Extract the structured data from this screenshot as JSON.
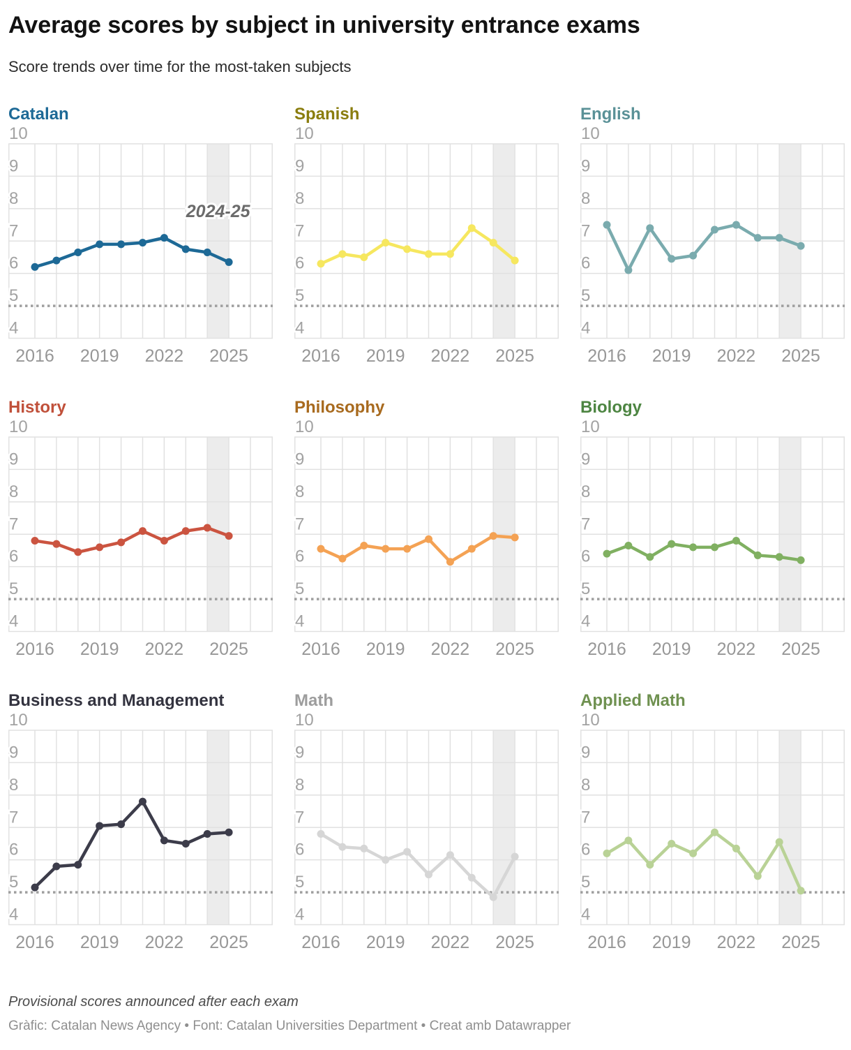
{
  "header": {
    "title": "Average scores by subject in university entrance exams",
    "subtitle": "Score trends over time for the most-taken subjects"
  },
  "footer": {
    "note": "Provisional scores announced after each exam",
    "credit": "Gràfic: Catalan News Agency • Font: Catalan Universities Department • Creat amb Datawrapper"
  },
  "style_colors": {
    "gridline": "#e1e1e1",
    "highlight_band": "#ececec",
    "reference_line": "#9f9f9f",
    "axis_tick_label": "#a2a2a2",
    "x_tick_label": "#979797",
    "annotation_text": "#6b6b6b"
  },
  "chart_data": {
    "type": "line",
    "years": [
      2016,
      2017,
      2018,
      2019,
      2020,
      2021,
      2022,
      2023,
      2024,
      2025
    ],
    "ylim": [
      4,
      10
    ],
    "y_ticks": [
      10,
      9,
      8,
      7,
      6,
      5,
      4
    ],
    "x_ticks": [
      2016,
      2019,
      2022,
      2025
    ],
    "x_gridline_years": [
      2016,
      2017,
      2018,
      2019,
      2020,
      2021,
      2022,
      2023,
      2024,
      2025,
      2026
    ],
    "reference_line": 5,
    "highlight_band": [
      2024,
      2025
    ],
    "band_annotation": "2024-25",
    "band_annotation_chart_index": 0,
    "grid": "on",
    "legend": "none (colored chart titles)",
    "series": [
      {
        "name": "Catalan",
        "title_color": "#1d6996",
        "line_color": "#1d6996",
        "values": [
          6.2,
          6.4,
          6.65,
          6.9,
          6.9,
          6.95,
          7.1,
          6.75,
          6.65,
          6.35
        ]
      },
      {
        "name": "Spanish",
        "title_color": "#8a7d0e",
        "line_color": "#f6e75f",
        "values": [
          6.3,
          6.6,
          6.5,
          6.95,
          6.75,
          6.6,
          6.6,
          7.4,
          6.95,
          6.4
        ]
      },
      {
        "name": "English",
        "title_color": "#5a9197",
        "line_color": "#7aabae",
        "values": [
          7.5,
          6.1,
          7.4,
          6.45,
          6.55,
          7.35,
          7.5,
          7.1,
          7.1,
          6.85
        ]
      },
      {
        "name": "History",
        "title_color": "#c0503a",
        "line_color": "#cb5440",
        "values": [
          6.8,
          6.7,
          6.45,
          6.6,
          6.75,
          7.1,
          6.8,
          7.1,
          7.2,
          6.95
        ]
      },
      {
        "name": "Philosophy",
        "title_color": "#a86a1e",
        "line_color": "#f4a254",
        "values": [
          6.55,
          6.25,
          6.65,
          6.55,
          6.55,
          6.85,
          6.15,
          6.55,
          6.95,
          6.9
        ]
      },
      {
        "name": "Biology",
        "title_color": "#4d8542",
        "line_color": "#80b061",
        "values": [
          6.4,
          6.65,
          6.3,
          6.7,
          6.6,
          6.6,
          6.8,
          6.35,
          6.3,
          6.2
        ]
      },
      {
        "name": "Business and Management",
        "title_color": "#33333f",
        "line_color": "#3c3c4a",
        "values": [
          5.15,
          5.8,
          5.85,
          7.05,
          7.1,
          7.8,
          6.6,
          6.5,
          6.8,
          6.85
        ]
      },
      {
        "name": "Math",
        "title_color": "#9d9d9d",
        "line_color": "#d6d6d6",
        "values": [
          6.8,
          6.4,
          6.35,
          6.0,
          6.25,
          5.55,
          6.15,
          5.45,
          4.85,
          6.1
        ]
      },
      {
        "name": "Applied Math",
        "title_color": "#6f9150",
        "line_color": "#b9d296",
        "values": [
          6.2,
          6.6,
          5.85,
          6.5,
          6.2,
          6.85,
          6.35,
          5.5,
          6.55,
          5.05
        ]
      }
    ]
  }
}
